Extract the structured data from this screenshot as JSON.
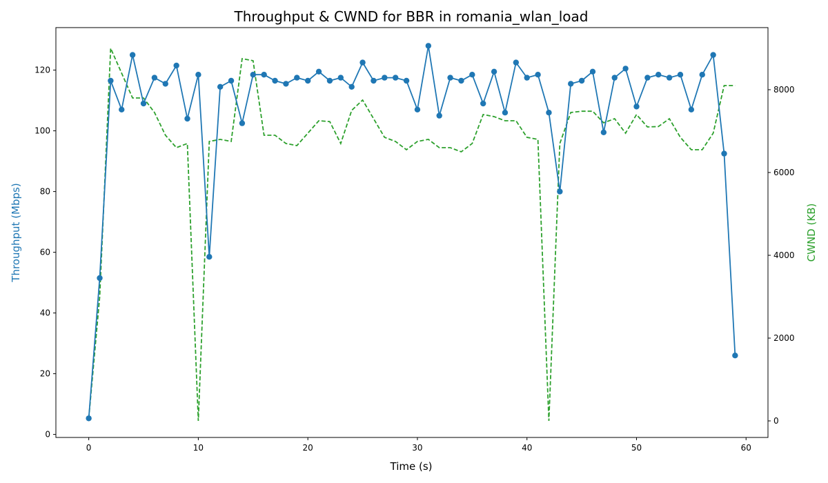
{
  "chart_data": {
    "type": "line",
    "title": "Throughput & CWND for BBR in romania_wlan_load",
    "xlabel": "Time (s)",
    "ylabel": "Throughput (Mbps)",
    "y2label": "CWND (KB)",
    "xlim": [
      -3,
      62
    ],
    "ylim": [
      -1,
      134
    ],
    "y2lim": [
      -400,
      9500
    ],
    "xticks": [
      0,
      10,
      20,
      30,
      40,
      50,
      60
    ],
    "yticks": [
      0,
      20,
      40,
      60,
      80,
      100,
      120
    ],
    "y2ticks": [
      0,
      2000,
      4000,
      6000,
      8000
    ],
    "grid": false,
    "colors": {
      "throughput": "#1f77b4",
      "cwnd": "#2ca02c"
    },
    "x": [
      0,
      1,
      2,
      3,
      4,
      5,
      6,
      7,
      8,
      9,
      10,
      11,
      12,
      13,
      14,
      15,
      16,
      17,
      18,
      19,
      20,
      21,
      22,
      23,
      24,
      25,
      26,
      27,
      28,
      29,
      30,
      31,
      32,
      33,
      34,
      35,
      36,
      37,
      38,
      39,
      40,
      41,
      42,
      43,
      44,
      45,
      46,
      47,
      48,
      49,
      50,
      51,
      52,
      53,
      54,
      55,
      56,
      57,
      58,
      59
    ],
    "series": [
      {
        "axis": "left",
        "style": "solid-markers",
        "values": [
          5.3,
          51.5,
          116.5,
          107,
          125,
          109,
          117.5,
          115.5,
          121.5,
          104,
          118.5,
          58.5,
          114.5,
          116.5,
          102.5,
          118.5,
          118.5,
          116.5,
          115.5,
          117.5,
          116.5,
          119.5,
          116.5,
          117.5,
          114.5,
          122.5,
          116.5,
          117.5,
          117.5,
          116.5,
          107,
          128,
          105,
          117.5,
          116.5,
          118.5,
          109,
          119.5,
          106,
          122.5,
          117.5,
          118.5,
          106,
          80,
          115.5,
          116.5,
          119.5,
          99.5,
          117.5,
          120.5,
          108,
          117.5,
          118.5,
          117.5,
          118.5,
          107,
          118.5,
          125,
          92.5,
          26
        ]
      },
      {
        "axis": "right",
        "style": "dashed",
        "values": [
          60,
          3000,
          9000,
          8400,
          7800,
          7800,
          7450,
          6900,
          6600,
          6700,
          0,
          6750,
          6800,
          6750,
          8750,
          8700,
          6900,
          6900,
          6700,
          6650,
          6950,
          7250,
          7230,
          6700,
          7500,
          7750,
          7300,
          6850,
          6750,
          6550,
          6750,
          6800,
          6600,
          6600,
          6500,
          6700,
          7400,
          7350,
          7250,
          7250,
          6850,
          6800,
          0,
          6700,
          7450,
          7480,
          7480,
          7200,
          7300,
          6950,
          7400,
          7100,
          7110,
          7300,
          6850,
          6550,
          6550,
          6950,
          8100,
          8100
        ]
      }
    ]
  }
}
